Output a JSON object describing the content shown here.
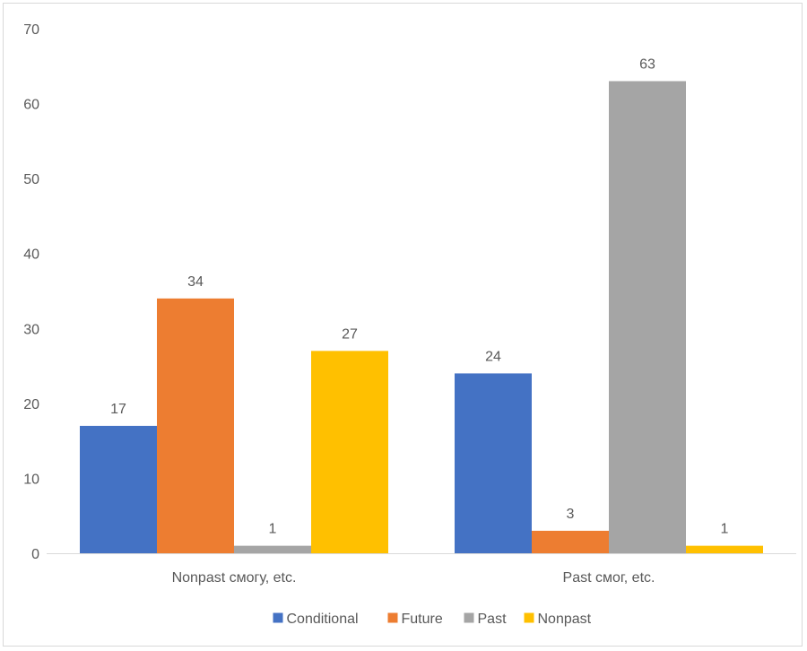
{
  "chart_data": {
    "type": "bar",
    "categories": [
      "Nonpast смогу, etc.",
      "Past смог, etc."
    ],
    "series": [
      {
        "name": "Conditional",
        "values": [
          17,
          24
        ],
        "color": "#4472c4"
      },
      {
        "name": "Future",
        "values": [
          34,
          3
        ],
        "color": "#ed7d31"
      },
      {
        "name": "Past",
        "values": [
          1,
          63
        ],
        "color": "#a5a5a5"
      },
      {
        "name": "Nonpast",
        "values": [
          27,
          1
        ],
        "color": "#ffc000"
      }
    ],
    "ylim": [
      0,
      70
    ],
    "yticks": [
      0,
      10,
      20,
      30,
      40,
      50,
      60,
      70
    ],
    "grid": false,
    "data_labels": true,
    "legend_position": "bottom"
  }
}
